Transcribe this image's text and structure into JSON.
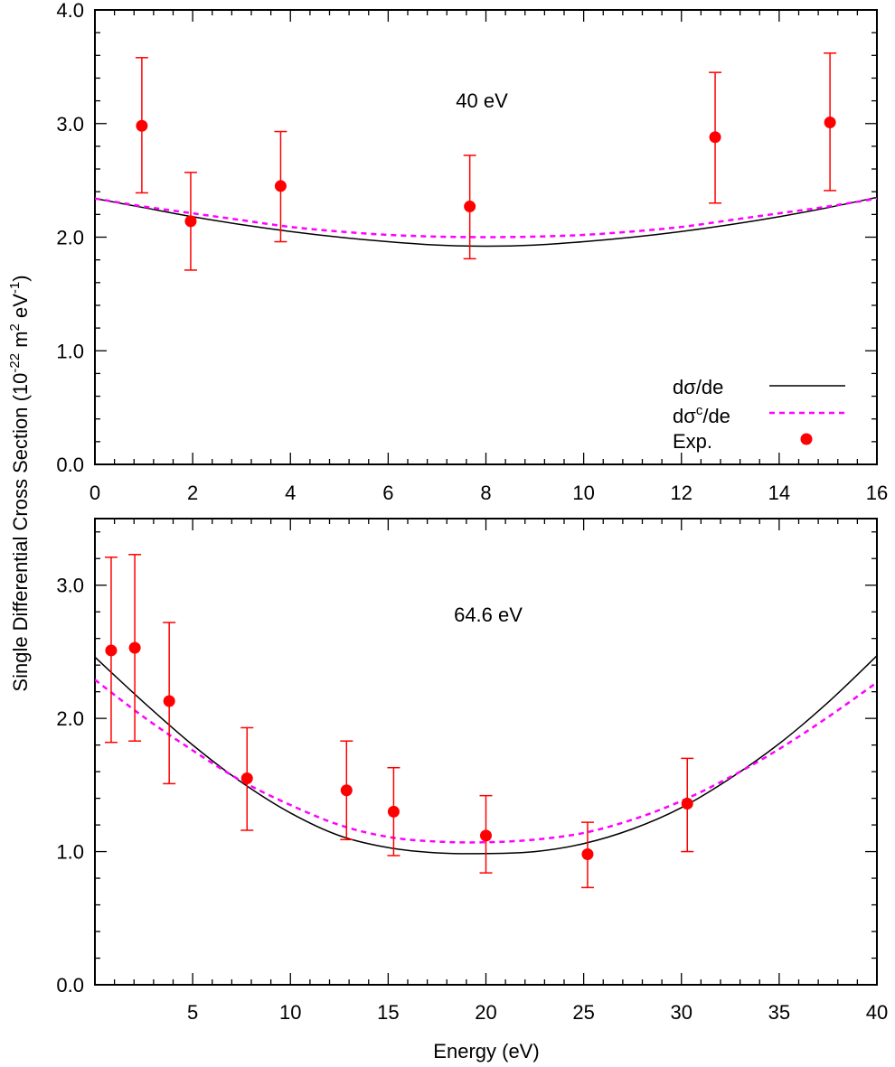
{
  "colors": {
    "theory": "#000000",
    "theory_corrected": "#ff00ff",
    "experiment": "#ff0000",
    "axis": "#000000"
  },
  "ylabel_shared": {
    "main": "Single Differential Cross Section (10",
    "exp1": "-22",
    "mid": " m",
    "exp2": "2",
    "mid2": " eV",
    "exp3": "-1",
    "end": ")"
  },
  "legend": {
    "entries": [
      {
        "label_main": "dσ/de",
        "label_sup": "",
        "label_tail": "",
        "style": "solid"
      },
      {
        "label_main": "dσ",
        "label_sup": "c",
        "label_tail": "/de",
        "style": "dashed"
      },
      {
        "label_main": "Exp.",
        "label_sup": "",
        "label_tail": "",
        "style": "marker"
      }
    ]
  },
  "chart_data": [
    {
      "type": "line",
      "title": "",
      "annotation": "40 eV",
      "xlabel": "",
      "ylabel": "Single Differential Cross Section (10^-22 m^2 eV^-1)",
      "xlim": [
        0,
        16
      ],
      "ylim": [
        0,
        4
      ],
      "x_ticks": [
        0,
        2,
        4,
        6,
        8,
        10,
        12,
        14,
        16
      ],
      "x_tick_labels": [
        "0",
        "2",
        "4",
        "6",
        "8",
        "10",
        "12",
        "14",
        "16"
      ],
      "x_minor_step": 0.4,
      "y_ticks": [
        0,
        1,
        2,
        3,
        4
      ],
      "y_tick_labels": [
        "0.0",
        "1.0",
        "2.0",
        "3.0",
        "4.0"
      ],
      "y_minor_step": 0.2,
      "grid": false,
      "legend_position": "bottom-right",
      "series": [
        {
          "name": "dσ/de",
          "style": "solid",
          "x": [
            0,
            1,
            2,
            3,
            4,
            5,
            6,
            7,
            8,
            9,
            10,
            11,
            12,
            13,
            14,
            15,
            16
          ],
          "y": [
            2.34,
            2.26,
            2.18,
            2.11,
            2.05,
            2.0,
            1.96,
            1.93,
            1.92,
            1.93,
            1.96,
            2.0,
            2.05,
            2.11,
            2.18,
            2.26,
            2.35
          ]
        },
        {
          "name": "dσc/de",
          "style": "dashed",
          "x": [
            0,
            1,
            2,
            3,
            4,
            5,
            6,
            7,
            8,
            9,
            10,
            11,
            12,
            13,
            14,
            15,
            16
          ],
          "y": [
            2.34,
            2.27,
            2.21,
            2.15,
            2.09,
            2.05,
            2.02,
            2.005,
            2.0,
            2.005,
            2.02,
            2.05,
            2.09,
            2.15,
            2.21,
            2.27,
            2.34
          ]
        },
        {
          "name": "Exp.",
          "style": "marker",
          "x": [
            0.96,
            1.96,
            3.8,
            7.67,
            12.69,
            15.04
          ],
          "y": [
            2.98,
            2.14,
            2.45,
            2.27,
            2.88,
            3.01
          ],
          "y_upper": [
            3.58,
            2.57,
            2.93,
            2.72,
            3.45,
            3.62
          ],
          "y_lower": [
            2.39,
            1.71,
            1.96,
            1.81,
            2.3,
            2.41
          ]
        }
      ]
    },
    {
      "type": "line",
      "title": "",
      "annotation": "64.6 eV",
      "xlabel": "Energy (eV)",
      "ylabel": "Single Differential Cross Section (10^-22 m^2 eV^-1)",
      "xlim": [
        0,
        40
      ],
      "ylim": [
        0,
        3.5
      ],
      "x_ticks": [
        5,
        10,
        15,
        20,
        25,
        30,
        35,
        40
      ],
      "x_tick_labels": [
        "5",
        "10",
        "15",
        "20",
        "25",
        "30",
        "35",
        "40"
      ],
      "x_minor_step": 1,
      "y_ticks": [
        0,
        1,
        2,
        3
      ],
      "y_tick_labels": [
        "0.0",
        "1.0",
        "2.0",
        "3.0"
      ],
      "y_minor_step": 0.2,
      "grid": false,
      "series": [
        {
          "name": "dσ/de",
          "style": "solid",
          "x": [
            0,
            2.5,
            5,
            7.5,
            10,
            12.5,
            15,
            17.5,
            20,
            22.5,
            25,
            27.5,
            30,
            32.5,
            35,
            37.5,
            40
          ],
          "y": [
            2.46,
            2.12,
            1.8,
            1.52,
            1.29,
            1.12,
            1.03,
            0.99,
            0.985,
            1.0,
            1.06,
            1.17,
            1.33,
            1.55,
            1.81,
            2.12,
            2.47
          ]
        },
        {
          "name": "dσc/de",
          "style": "dashed",
          "x": [
            0,
            2.5,
            5,
            7.5,
            10,
            12.5,
            15,
            17.5,
            20,
            22.5,
            25,
            27.5,
            30,
            32.5,
            35,
            37.5,
            40
          ],
          "y": [
            2.29,
            2.01,
            1.76,
            1.53,
            1.35,
            1.2,
            1.11,
            1.075,
            1.07,
            1.09,
            1.14,
            1.24,
            1.38,
            1.56,
            1.77,
            2.01,
            2.27
          ]
        },
        {
          "name": "Exp.",
          "style": "marker",
          "x": [
            0.83,
            2.04,
            3.8,
            7.78,
            12.87,
            15.28,
            20.0,
            25.2,
            30.3
          ],
          "y": [
            2.51,
            2.53,
            2.13,
            1.55,
            1.46,
            1.3,
            1.12,
            0.98,
            1.36
          ],
          "y_upper": [
            3.21,
            3.23,
            2.72,
            1.93,
            1.83,
            1.63,
            1.42,
            1.22,
            1.7
          ],
          "y_lower": [
            1.82,
            1.83,
            1.51,
            1.16,
            1.09,
            0.97,
            0.84,
            0.73,
            1.0
          ]
        }
      ]
    }
  ]
}
